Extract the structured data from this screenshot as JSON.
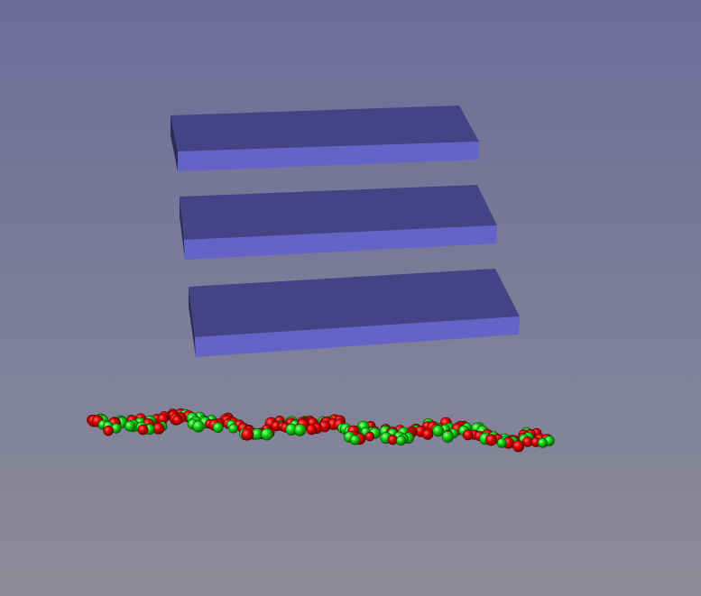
{
  "scene": {
    "background_top": "#6c6c98",
    "background_bottom": "#8c8c98",
    "slab_colors": {
      "top": "#434385",
      "front": "#6464c8",
      "side": "#2a2a55"
    },
    "particle_colors": {
      "red": "#d40000",
      "green": "#00cc00"
    },
    "slab_count": 3,
    "particle_chain_label": ""
  }
}
